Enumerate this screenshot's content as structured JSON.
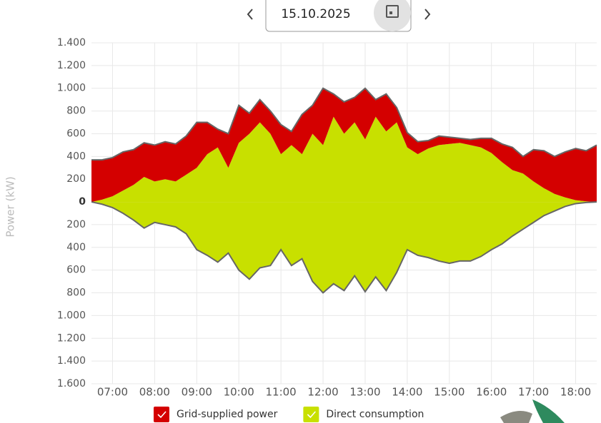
{
  "header": {
    "date": "15.10.2025"
  },
  "chart_data": {
    "type": "stacked_area",
    "ylabel": "Power (kW)",
    "x": [
      "06:30",
      "06:45",
      "07:00",
      "07:15",
      "07:30",
      "07:45",
      "08:00",
      "08:15",
      "08:30",
      "08:45",
      "09:00",
      "09:15",
      "09:30",
      "09:45",
      "10:00",
      "10:15",
      "10:30",
      "10:45",
      "11:00",
      "11:15",
      "11:30",
      "11:45",
      "12:00",
      "12:15",
      "12:30",
      "12:45",
      "13:00",
      "13:15",
      "13:30",
      "13:45",
      "14:00",
      "14:15",
      "14:30",
      "14:45",
      "15:00",
      "15:15",
      "15:30",
      "15:45",
      "16:00",
      "16:15",
      "16:30",
      "16:45",
      "17:00",
      "17:15",
      "17:30",
      "17:45",
      "18:00",
      "18:15",
      "18:30"
    ],
    "series": [
      {
        "name": "Direct consumption",
        "color": "#c8e000",
        "stack": "up",
        "values": [
          0,
          20,
          50,
          100,
          150,
          220,
          180,
          200,
          180,
          240,
          300,
          420,
          480,
          300,
          520,
          600,
          700,
          600,
          420,
          500,
          420,
          600,
          500,
          750,
          600,
          700,
          550,
          750,
          620,
          700,
          480,
          420,
          470,
          500,
          510,
          520,
          500,
          480,
          430,
          350,
          280,
          250,
          180,
          120,
          70,
          40,
          15,
          5,
          0
        ]
      },
      {
        "name": "Grid-supplied power",
        "color": "#d40000",
        "stack": "up",
        "values": [
          370,
          350,
          340,
          340,
          310,
          300,
          320,
          330,
          330,
          340,
          400,
          280,
          160,
          300,
          330,
          180,
          200,
          200,
          260,
          120,
          350,
          250,
          500,
          200,
          280,
          220,
          450,
          150,
          330,
          130,
          130,
          110,
          70,
          80,
          60,
          40,
          50,
          80,
          130,
          160,
          200,
          150,
          280,
          330,
          330,
          400,
          455,
          445,
          500
        ]
      },
      {
        "color": "#c8e000",
        "stack": "down",
        "values": [
          0,
          -20,
          -50,
          -100,
          -160,
          -230,
          -180,
          -200,
          -220,
          -280,
          -420,
          -470,
          -530,
          -450,
          -600,
          -680,
          -580,
          -560,
          -420,
          -560,
          -500,
          -700,
          -800,
          -720,
          -780,
          -650,
          -790,
          -660,
          -780,
          -620,
          -420,
          -470,
          -490,
          -520,
          -540,
          -520,
          -520,
          -480,
          -420,
          -370,
          -300,
          -240,
          -180,
          -120,
          -80,
          -40,
          -15,
          -5,
          0
        ]
      }
    ],
    "xlim": [
      "06:30",
      "18:30"
    ],
    "xticks": [
      "07:00",
      "08:00",
      "09:00",
      "10:00",
      "11:00",
      "12:00",
      "13:00",
      "14:00",
      "15:00",
      "16:00",
      "17:00",
      "18:00"
    ],
    "ylim": [
      -1600,
      1400
    ],
    "yticks": [
      {
        "value": 1400,
        "label": "1.400"
      },
      {
        "value": 1200,
        "label": "1.200"
      },
      {
        "value": 1000,
        "label": "1.000"
      },
      {
        "value": 800,
        "label": "800"
      },
      {
        "value": 600,
        "label": "600"
      },
      {
        "value": 400,
        "label": "400"
      },
      {
        "value": 200,
        "label": "200"
      },
      0,
      {
        "value": -200,
        "label": "200"
      },
      {
        "value": -400,
        "label": "400"
      },
      {
        "value": -600,
        "label": "600"
      },
      {
        "value": -800,
        "label": "800"
      },
      {
        "value": -1000,
        "label": "1.000"
      },
      {
        "value": -1200,
        "label": "1.200"
      },
      {
        "value": -1400,
        "label": "1.400"
      },
      {
        "value": -1600,
        "label": "1.600"
      }
    ],
    "grid": true,
    "line_color": "#666666"
  }
}
